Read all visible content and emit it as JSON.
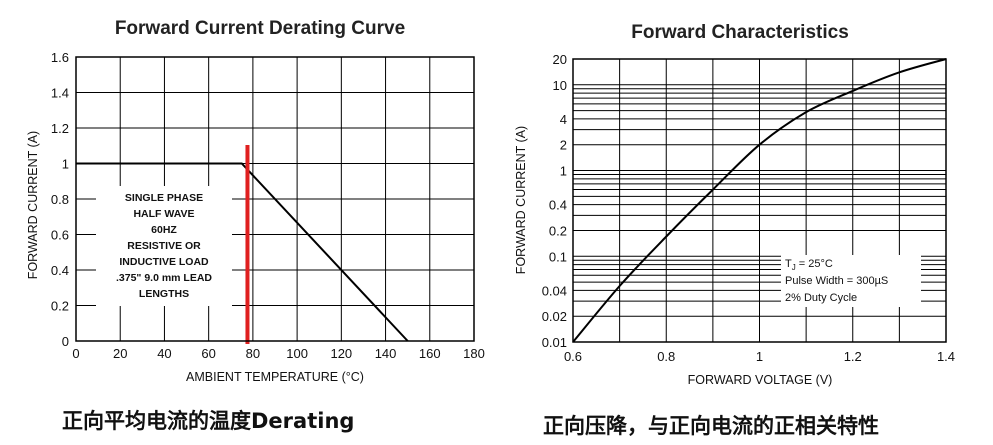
{
  "captions": {
    "left": "正向平均电流的温度Derating",
    "right": "正向压降，与正向电流的正相关特性"
  },
  "chart_data": [
    {
      "type": "line",
      "title": "Forward Current Derating Curve",
      "xlabel": "AMBIENT TEMPERATURE (°C)",
      "ylabel": "FORWARD CURRENT (A)",
      "xlim": [
        0,
        180
      ],
      "ylim": [
        0,
        1.6
      ],
      "x_ticks": [
        "0",
        "20",
        "40",
        "60",
        "80",
        "100",
        "120",
        "140",
        "160",
        "180"
      ],
      "y_ticks": [
        "0",
        "0.2",
        "0.4",
        "0.6",
        "0.8",
        "1",
        "1.2",
        "1.4",
        "1.6"
      ],
      "grid": true,
      "series": [
        {
          "x": [
            0,
            75,
            150
          ],
          "y": [
            1.0,
            1.0,
            0.0
          ]
        }
      ],
      "marker_line": {
        "x": 78,
        "color": "#e02020"
      },
      "annotation_lines": [
        "SINGLE PHASE",
        "HALF WAVE",
        "60HZ",
        "RESISTIVE OR",
        "INDUCTIVE LOAD",
        ".375\" 9.0 mm LEAD",
        "LENGTHS"
      ]
    },
    {
      "type": "line",
      "title": "Forward Characteristics",
      "xlabel": "FORWARD VOLTAGE (V)",
      "ylabel": "FORWARD CURRENT (A)",
      "xlim": [
        0.6,
        1.4
      ],
      "ylim": [
        0.01,
        20
      ],
      "y_scale": "log",
      "x_ticks": [
        "0.6",
        "0.8",
        "1",
        "1.2",
        "1.4"
      ],
      "y_ticks": [
        "0.01",
        "0.02",
        "0.04",
        "0.1",
        "0.2",
        "0.4",
        "1",
        "2",
        "4",
        "10",
        "20"
      ],
      "grid": true,
      "series": [
        {
          "x": [
            0.6,
            0.7,
            0.8,
            0.9,
            1.0,
            1.1,
            1.2,
            1.3,
            1.4
          ],
          "y": [
            0.01,
            0.045,
            0.17,
            0.6,
            2.0,
            4.8,
            8.5,
            14,
            20
          ]
        }
      ],
      "annotation": {
        "tj_prefix": "T",
        "tj_sub": "J",
        "tj_value": " = 25°C",
        "line2": "Pulse Width = 300µS",
        "line3": "2% Duty Cycle"
      }
    }
  ]
}
